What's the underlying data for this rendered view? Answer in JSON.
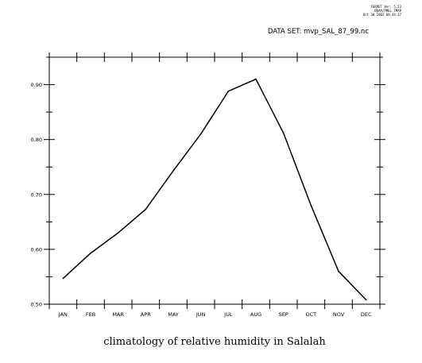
{
  "header": {
    "ferret_version": "FERRET Ver. 5.53",
    "ferret_org": "NOAA/PMEL TMAP",
    "ferret_date": "Oct 30 2002 09:44:37",
    "dataset": "DATA SET: mvp_SAL_87_99.nc"
  },
  "chart_data": {
    "type": "line",
    "title": "climatology of relative humidity in Salalah",
    "categories": [
      "JAN",
      "FEB",
      "MAR",
      "APR",
      "MAY",
      "JUN",
      "JUL",
      "AUG",
      "SEP",
      "OCT",
      "NOV",
      "DEC"
    ],
    "series": [
      {
        "values": [
          0.547,
          0.593,
          0.63,
          0.673,
          0.743,
          0.81,
          0.888,
          0.91,
          0.812,
          0.68,
          0.56,
          0.508
        ]
      }
    ],
    "ylim": [
      0.5,
      0.95
    ],
    "yticks": [
      0.5,
      0.6,
      0.7,
      0.8,
      0.9
    ],
    "ytick_labels": [
      "0.50",
      "0.60",
      "0.70",
      "0.80",
      "0.90"
    ],
    "xlim": [
      0,
      12
    ],
    "xlabel": "",
    "ylabel": "",
    "grid": false,
    "line_color": "#000000"
  }
}
